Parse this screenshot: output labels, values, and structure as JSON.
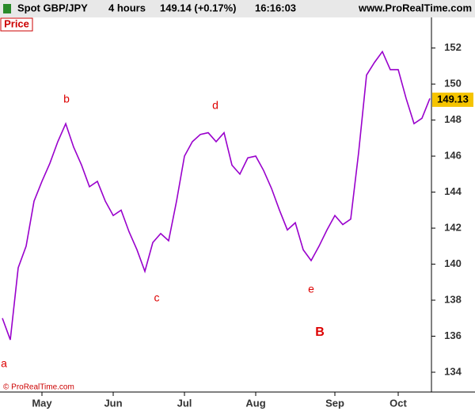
{
  "header": {
    "symbol": "Spot GBP/JPY",
    "interval": "4 hours",
    "quote": "149.14 (+0.17%)",
    "time": "16:16:03",
    "site": "www.ProRealTime.com"
  },
  "chart_data": {
    "type": "line",
    "title": "Price",
    "copyright": "© ProRealTime.com",
    "categories": [
      null,
      null,
      null,
      null,
      null,
      "May",
      null,
      null,
      null,
      null,
      null,
      null,
      null,
      null,
      "Jun",
      null,
      null,
      null,
      null,
      null,
      null,
      null,
      null,
      "Jul",
      null,
      null,
      null,
      null,
      null,
      null,
      null,
      null,
      "Aug",
      null,
      null,
      null,
      null,
      null,
      null,
      null,
      null,
      null,
      "Sep",
      null,
      null,
      null,
      null,
      null,
      null,
      null,
      "Oct",
      null,
      null,
      null,
      null
    ],
    "series": [
      {
        "name": "GBP/JPY",
        "color": "#9900cc",
        "values": [
          137,
          135.8,
          139.8,
          141,
          143.5,
          144.6,
          145.6,
          146.8,
          147.8,
          146.5,
          145.5,
          144.3,
          144.6,
          143.5,
          142.7,
          143,
          141.8,
          140.8,
          139.6,
          141.2,
          141.7,
          141.3,
          143.5,
          146,
          146.8,
          147.2,
          147.3,
          146.8,
          147.3,
          145.5,
          145,
          145.9,
          146,
          145.2,
          144.2,
          143,
          141.9,
          142.3,
          140.8,
          140.2,
          141,
          141.9,
          142.7,
          142.2,
          142.5,
          146.2,
          150.5,
          151.2,
          151.8,
          150.8,
          150.8,
          149.2,
          147.8,
          148.1,
          149.2
        ]
      }
    ],
    "current_price": 149.13,
    "ylim": [
      132.9,
      153.7
    ],
    "yticks": [
      134,
      136,
      138,
      140,
      142,
      144,
      146,
      148,
      150,
      152
    ],
    "annotations": [
      {
        "text": "a"
      },
      {
        "text": "b"
      },
      {
        "text": "c"
      },
      {
        "text": "d"
      },
      {
        "text": "e"
      },
      {
        "text": "B"
      }
    ]
  }
}
